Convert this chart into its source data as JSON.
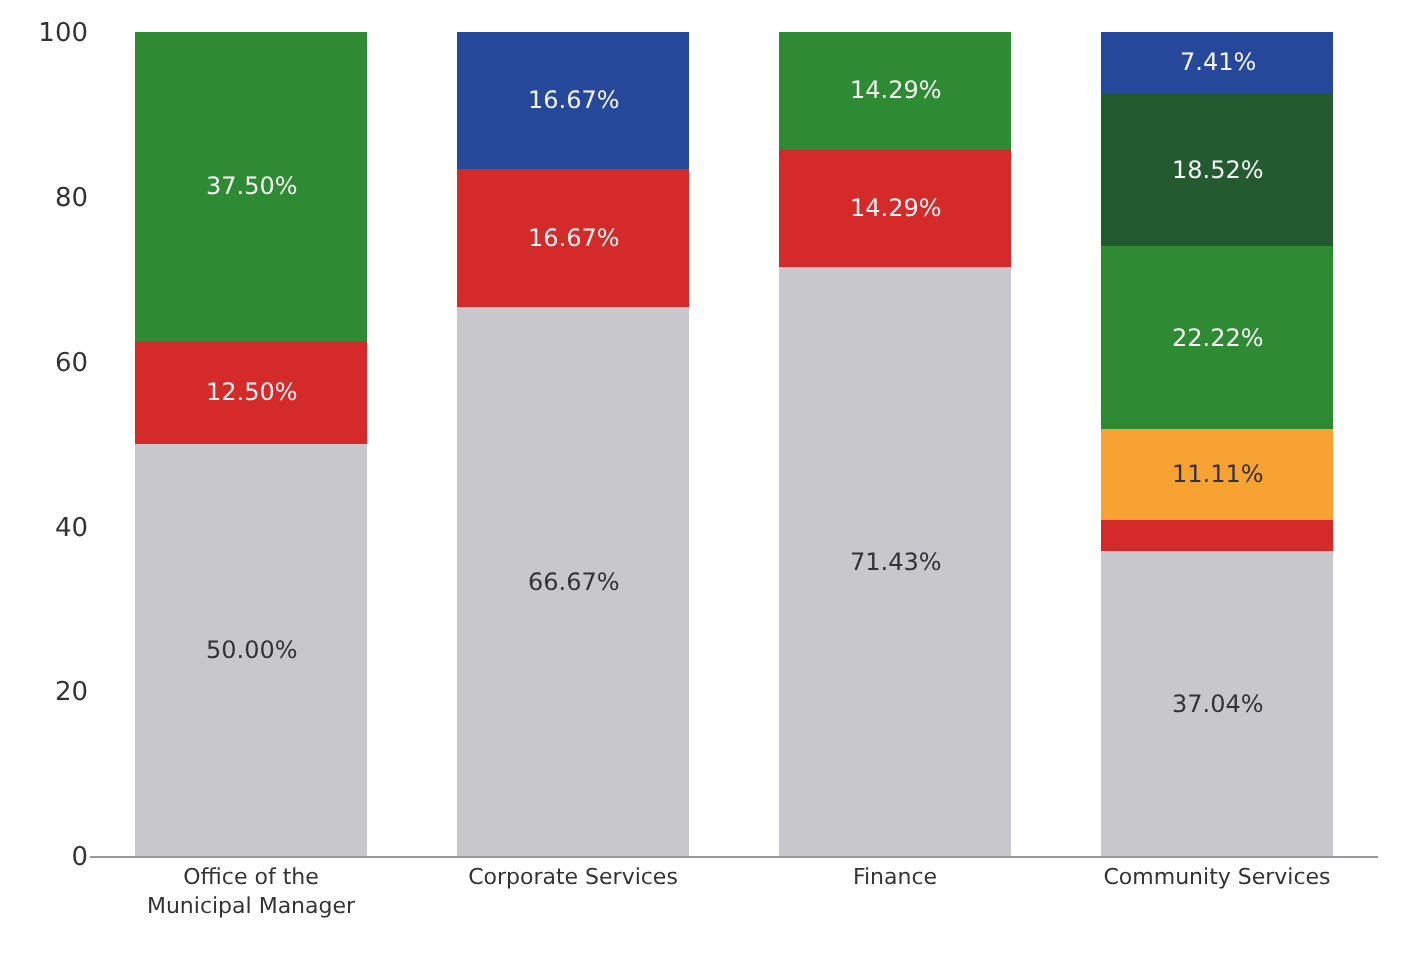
{
  "chart_data": {
    "type": "bar",
    "stacked": true,
    "categories": [
      "Office of the Municipal Manager",
      "Corporate Services",
      "Finance",
      "Community Services"
    ],
    "series": [
      {
        "color": "#c8c8cc",
        "values": [
          50.0,
          66.67,
          71.43,
          37.04
        ],
        "value_labels": [
          "50.00%",
          "66.67%",
          "71.43%",
          "37.04%"
        ]
      },
      {
        "color": "#d42a2a",
        "values": [
          12.5,
          16.67,
          14.29,
          3.7
        ],
        "value_labels": [
          "12.50%",
          "16.67%",
          "14.29%",
          null
        ]
      },
      {
        "color": "#f7a233",
        "values": [
          null,
          null,
          null,
          11.11
        ],
        "value_labels": [
          null,
          null,
          null,
          "11.11%"
        ]
      },
      {
        "color": "#2f8a34",
        "values": [
          37.5,
          null,
          14.29,
          22.22
        ],
        "value_labels": [
          "37.50%",
          null,
          "14.29%",
          "22.22%"
        ]
      },
      {
        "color": "#245a30",
        "values": [
          null,
          null,
          null,
          18.52
        ],
        "value_labels": [
          null,
          null,
          null,
          "18.52%"
        ]
      },
      {
        "color": "#26489a",
        "values": [
          null,
          16.67,
          null,
          7.41
        ],
        "value_labels": [
          null,
          "16.67%",
          null,
          "7.41%"
        ]
      }
    ],
    "ylim": [
      0,
      100
    ],
    "yticks": [
      0,
      20,
      40,
      60,
      80,
      100
    ]
  }
}
